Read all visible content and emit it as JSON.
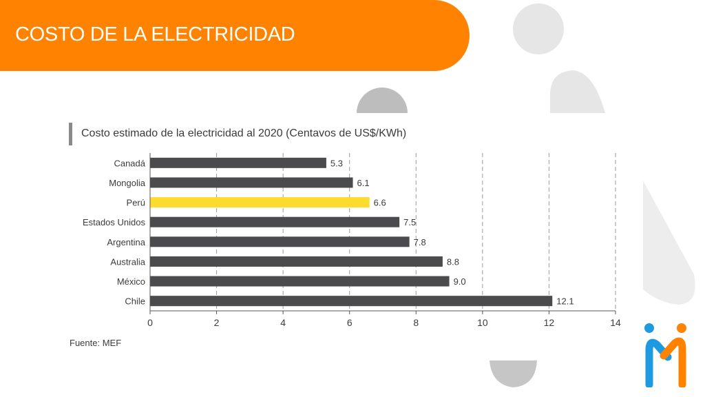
{
  "header": {
    "title": "COSTO DE LA ELECTRICIDAD"
  },
  "source": "Fuente: MEF",
  "colors": {
    "header": "#FF8200",
    "bar": "#4B4B4E",
    "highlight": "#FDDC2E",
    "grid": "#9a9a9a",
    "decor": "#E6E6E6",
    "logo_blue": "#1E9BE0",
    "logo_orange": "#FF8200"
  },
  "chart_data": {
    "type": "bar",
    "orientation": "horizontal",
    "title": "Costo estimado de la electricidad al 2020 (Centavos de US$/KWh)",
    "categories": [
      "Canadá",
      "Mongolia",
      "Perú",
      "Estados Unidos",
      "Argentina",
      "Australia",
      "México",
      "Chile"
    ],
    "values": [
      5.3,
      6.1,
      6.6,
      7.5,
      7.8,
      8.8,
      9.0,
      12.1
    ],
    "value_labels": [
      "5.3",
      "6.1",
      "6.6",
      "7.5",
      "7.8",
      "8.8",
      "9.0",
      "12.1"
    ],
    "highlight_category": "Perú",
    "xlim": [
      0,
      14
    ],
    "xticks": [
      0,
      2,
      4,
      6,
      8,
      10,
      12,
      14
    ],
    "grid": "vertical dashed",
    "xlabel": "",
    "ylabel": ""
  }
}
